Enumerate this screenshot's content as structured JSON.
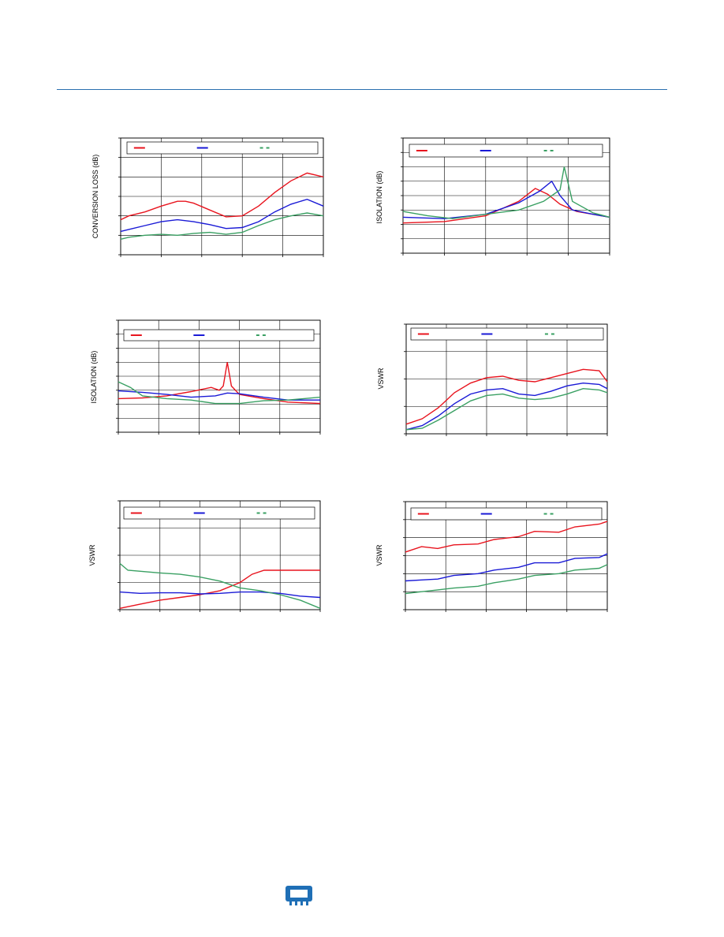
{
  "colors": {
    "red": "#e8141e",
    "blue": "#1a1ad6",
    "green": "#3aa063",
    "grid": "#000000",
    "header_rule": "#2a6fb0",
    "logo": "#1f6fb6"
  },
  "footer": {
    "logo_icon": "chip-icon"
  },
  "chart_data": [
    {
      "type": "line",
      "ylabel": "CONVERSION LOSS (dB)",
      "grid": true,
      "legend": "top",
      "ylim": [
        0,
        6
      ],
      "xlim": [
        0,
        5
      ],
      "series": [
        {
          "color": "#e8141e",
          "points": [
            [
              0,
              1.8
            ],
            [
              0.2,
              2.0
            ],
            [
              0.6,
              2.2
            ],
            [
              1.0,
              2.5
            ],
            [
              1.4,
              2.75
            ],
            [
              1.6,
              2.75
            ],
            [
              1.8,
              2.65
            ],
            [
              2.2,
              2.3
            ],
            [
              2.6,
              1.95
            ],
            [
              3.0,
              2.0
            ],
            [
              3.4,
              2.5
            ],
            [
              3.8,
              3.2
            ],
            [
              4.2,
              3.8
            ],
            [
              4.6,
              4.2
            ],
            [
              5.0,
              4.0
            ]
          ]
        },
        {
          "color": "#1a1ad6",
          "points": [
            [
              0,
              1.2
            ],
            [
              0.2,
              1.3
            ],
            [
              0.6,
              1.5
            ],
            [
              1.0,
              1.7
            ],
            [
              1.4,
              1.8
            ],
            [
              1.8,
              1.7
            ],
            [
              2.2,
              1.55
            ],
            [
              2.6,
              1.35
            ],
            [
              3.0,
              1.4
            ],
            [
              3.4,
              1.7
            ],
            [
              3.8,
              2.2
            ],
            [
              4.2,
              2.6
            ],
            [
              4.6,
              2.85
            ],
            [
              5.0,
              2.5
            ]
          ]
        },
        {
          "color": "#3aa063",
          "points": [
            [
              0,
              0.8
            ],
            [
              0.2,
              0.9
            ],
            [
              0.6,
              1.0
            ],
            [
              1.0,
              1.05
            ],
            [
              1.4,
              1.0
            ],
            [
              1.8,
              1.1
            ],
            [
              2.2,
              1.15
            ],
            [
              2.6,
              1.05
            ],
            [
              3.0,
              1.15
            ],
            [
              3.4,
              1.5
            ],
            [
              3.8,
              1.8
            ],
            [
              4.2,
              2.0
            ],
            [
              4.6,
              2.15
            ],
            [
              5.0,
              2.0
            ]
          ]
        }
      ]
    },
    {
      "type": "line",
      "ylabel": "ISOLATION (dB)",
      "grid": true,
      "legend": "top",
      "ylim": [
        0,
        8
      ],
      "xlim": [
        0,
        5
      ],
      "series": [
        {
          "color": "#e8141e",
          "points": [
            [
              0,
              2.1
            ],
            [
              1.0,
              2.2
            ],
            [
              2.0,
              2.6
            ],
            [
              2.8,
              3.6
            ],
            [
              3.2,
              4.5
            ],
            [
              3.5,
              4.1
            ],
            [
              3.8,
              3.4
            ],
            [
              4.2,
              2.9
            ],
            [
              4.6,
              2.7
            ],
            [
              5.0,
              2.5
            ]
          ]
        },
        {
          "color": "#1a1ad6",
          "points": [
            [
              0,
              2.5
            ],
            [
              1.0,
              2.4
            ],
            [
              2.0,
              2.7
            ],
            [
              2.8,
              3.5
            ],
            [
              3.3,
              4.3
            ],
            [
              3.6,
              5.0
            ],
            [
              3.8,
              4.0
            ],
            [
              4.1,
              3.0
            ],
            [
              4.6,
              2.7
            ],
            [
              5.0,
              2.5
            ]
          ]
        },
        {
          "color": "#3aa063",
          "points": [
            [
              0,
              2.9
            ],
            [
              0.6,
              2.6
            ],
            [
              1.2,
              2.4
            ],
            [
              2.0,
              2.7
            ],
            [
              2.8,
              3.0
            ],
            [
              3.4,
              3.6
            ],
            [
              3.8,
              4.4
            ],
            [
              3.9,
              6.0
            ],
            [
              4.1,
              3.6
            ],
            [
              4.6,
              2.8
            ],
            [
              5.0,
              2.5
            ]
          ]
        }
      ]
    },
    {
      "type": "line",
      "ylabel": "ISOLATION (dB)",
      "grid": true,
      "legend": "top",
      "ylim": [
        0,
        8
      ],
      "xlim": [
        0,
        5
      ],
      "series": [
        {
          "color": "#e8141e",
          "points": [
            [
              0,
              2.4
            ],
            [
              0.6,
              2.45
            ],
            [
              1.2,
              2.6
            ],
            [
              1.8,
              2.9
            ],
            [
              2.3,
              3.2
            ],
            [
              2.5,
              3.0
            ],
            [
              2.6,
              3.3
            ],
            [
              2.7,
              5.0
            ],
            [
              2.8,
              3.3
            ],
            [
              3.0,
              2.7
            ],
            [
              3.6,
              2.4
            ],
            [
              4.2,
              2.15
            ],
            [
              5.0,
              2.05
            ]
          ]
        },
        {
          "color": "#1a1ad6",
          "points": [
            [
              0,
              2.95
            ],
            [
              0.6,
              2.85
            ],
            [
              1.2,
              2.7
            ],
            [
              1.8,
              2.5
            ],
            [
              2.4,
              2.6
            ],
            [
              2.7,
              2.8
            ],
            [
              3.0,
              2.75
            ],
            [
              3.6,
              2.5
            ],
            [
              4.2,
              2.3
            ],
            [
              5.0,
              2.3
            ]
          ]
        },
        {
          "color": "#3aa063",
          "points": [
            [
              0,
              3.6
            ],
            [
              0.3,
              3.2
            ],
            [
              0.6,
              2.6
            ],
            [
              1.2,
              2.4
            ],
            [
              1.8,
              2.3
            ],
            [
              2.4,
              2.05
            ],
            [
              3.0,
              2.05
            ],
            [
              3.6,
              2.25
            ],
            [
              4.2,
              2.3
            ],
            [
              5.0,
              2.5
            ]
          ]
        }
      ]
    },
    {
      "type": "line",
      "ylabel": "VSWR",
      "grid": true,
      "legend": "top",
      "ylim": [
        0,
        4
      ],
      "xlim": [
        0,
        5
      ],
      "series": [
        {
          "color": "#e8141e",
          "points": [
            [
              0,
              0.35
            ],
            [
              0.4,
              0.55
            ],
            [
              0.8,
              0.95
            ],
            [
              1.2,
              1.5
            ],
            [
              1.6,
              1.85
            ],
            [
              2.0,
              2.05
            ],
            [
              2.4,
              2.1
            ],
            [
              2.8,
              1.95
            ],
            [
              3.2,
              1.9
            ],
            [
              3.6,
              2.05
            ],
            [
              4.0,
              2.2
            ],
            [
              4.4,
              2.35
            ],
            [
              4.8,
              2.3
            ],
            [
              5.0,
              1.9
            ]
          ]
        },
        {
          "color": "#1a1ad6",
          "points": [
            [
              0,
              0.15
            ],
            [
              0.4,
              0.3
            ],
            [
              0.8,
              0.65
            ],
            [
              1.2,
              1.1
            ],
            [
              1.6,
              1.45
            ],
            [
              2.0,
              1.6
            ],
            [
              2.4,
              1.65
            ],
            [
              2.8,
              1.45
            ],
            [
              3.2,
              1.4
            ],
            [
              3.6,
              1.55
            ],
            [
              4.0,
              1.75
            ],
            [
              4.4,
              1.85
            ],
            [
              4.8,
              1.8
            ],
            [
              5.0,
              1.65
            ]
          ]
        },
        {
          "color": "#3aa063",
          "points": [
            [
              0,
              0.15
            ],
            [
              0.4,
              0.2
            ],
            [
              0.8,
              0.5
            ],
            [
              1.2,
              0.85
            ],
            [
              1.6,
              1.2
            ],
            [
              2.0,
              1.4
            ],
            [
              2.4,
              1.45
            ],
            [
              2.8,
              1.3
            ],
            [
              3.2,
              1.25
            ],
            [
              3.6,
              1.3
            ],
            [
              4.0,
              1.45
            ],
            [
              4.4,
              1.65
            ],
            [
              4.8,
              1.6
            ],
            [
              5.0,
              1.5
            ]
          ]
        }
      ]
    },
    {
      "type": "line",
      "ylabel": "VSWR",
      "grid": true,
      "legend": "top",
      "ylim": [
        0,
        4
      ],
      "xlim": [
        0,
        5
      ],
      "series": [
        {
          "color": "#e8141e",
          "points": [
            [
              0,
              0.05
            ],
            [
              0.5,
              0.2
            ],
            [
              1.0,
              0.35
            ],
            [
              1.5,
              0.45
            ],
            [
              2.0,
              0.55
            ],
            [
              2.5,
              0.7
            ],
            [
              3.0,
              1.0
            ],
            [
              3.3,
              1.3
            ],
            [
              3.6,
              1.45
            ],
            [
              4.0,
              1.45
            ],
            [
              4.5,
              1.45
            ],
            [
              5.0,
              1.45
            ]
          ]
        },
        {
          "color": "#1a1ad6",
          "points": [
            [
              0,
              0.65
            ],
            [
              0.5,
              0.6
            ],
            [
              1.0,
              0.62
            ],
            [
              1.5,
              0.62
            ],
            [
              2.0,
              0.58
            ],
            [
              2.5,
              0.6
            ],
            [
              3.0,
              0.65
            ],
            [
              3.5,
              0.65
            ],
            [
              4.0,
              0.6
            ],
            [
              4.5,
              0.5
            ],
            [
              5.0,
              0.45
            ]
          ]
        },
        {
          "color": "#3aa063",
          "points": [
            [
              0,
              1.7
            ],
            [
              0.2,
              1.45
            ],
            [
              0.6,
              1.4
            ],
            [
              1.0,
              1.35
            ],
            [
              1.5,
              1.3
            ],
            [
              2.0,
              1.2
            ],
            [
              2.5,
              1.05
            ],
            [
              3.0,
              0.8
            ],
            [
              3.5,
              0.7
            ],
            [
              4.0,
              0.55
            ],
            [
              4.5,
              0.35
            ],
            [
              5.0,
              0.05
            ]
          ]
        }
      ]
    },
    {
      "type": "line",
      "ylabel": "VSWR",
      "grid": true,
      "legend": "top",
      "ylim": [
        0,
        6
      ],
      "xlim": [
        0,
        5
      ],
      "series": [
        {
          "color": "#e8141e",
          "points": [
            [
              0,
              3.2
            ],
            [
              0.4,
              3.5
            ],
            [
              0.8,
              3.4
            ],
            [
              1.2,
              3.6
            ],
            [
              1.8,
              3.65
            ],
            [
              2.2,
              3.9
            ],
            [
              2.8,
              4.05
            ],
            [
              3.2,
              4.35
            ],
            [
              3.8,
              4.3
            ],
            [
              4.2,
              4.6
            ],
            [
              4.8,
              4.75
            ],
            [
              5.0,
              4.9
            ]
          ]
        },
        {
          "color": "#1a1ad6",
          "points": [
            [
              0,
              1.6
            ],
            [
              0.4,
              1.65
            ],
            [
              0.8,
              1.7
            ],
            [
              1.2,
              1.9
            ],
            [
              1.8,
              2.0
            ],
            [
              2.2,
              2.2
            ],
            [
              2.8,
              2.35
            ],
            [
              3.2,
              2.6
            ],
            [
              3.8,
              2.6
            ],
            [
              4.2,
              2.85
            ],
            [
              4.8,
              2.9
            ],
            [
              5.0,
              3.1
            ]
          ]
        },
        {
          "color": "#3aa063",
          "points": [
            [
              0,
              0.9
            ],
            [
              0.4,
              1.0
            ],
            [
              0.8,
              1.1
            ],
            [
              1.2,
              1.2
            ],
            [
              1.8,
              1.3
            ],
            [
              2.2,
              1.5
            ],
            [
              2.8,
              1.7
            ],
            [
              3.2,
              1.9
            ],
            [
              3.8,
              2.0
            ],
            [
              4.2,
              2.2
            ],
            [
              4.8,
              2.3
            ],
            [
              5.0,
              2.5
            ]
          ]
        }
      ]
    }
  ]
}
